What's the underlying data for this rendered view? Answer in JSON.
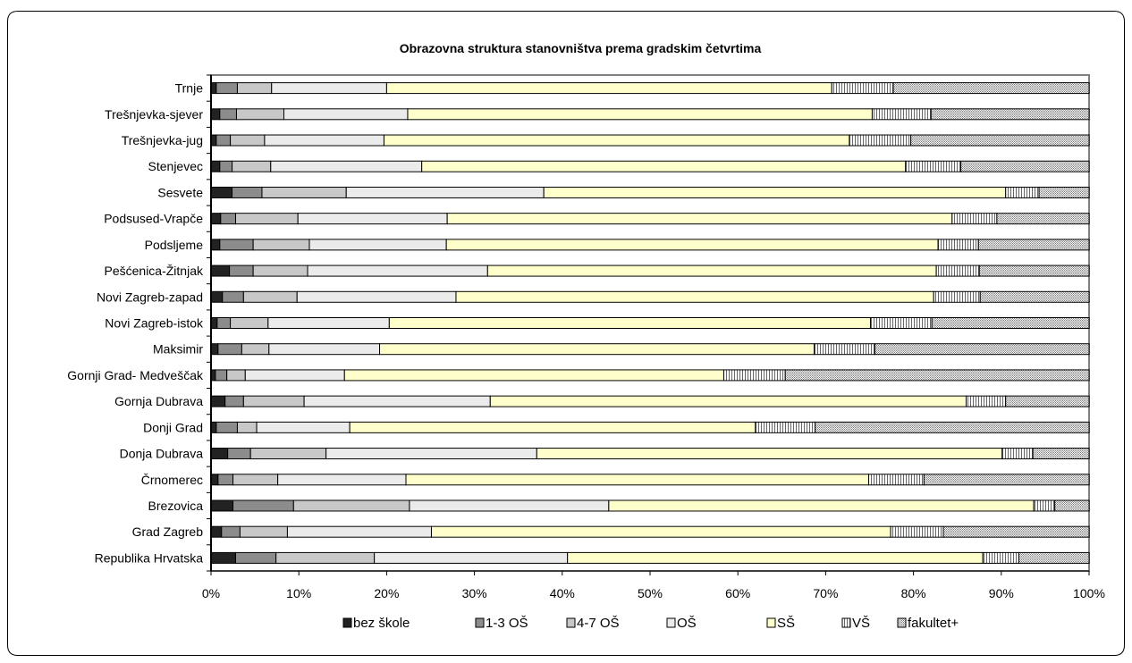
{
  "chart_data": {
    "type": "bar",
    "orientation": "horizontal",
    "stacked": "percent",
    "title": "Obrazovna struktura stanovništva prema gradskim četvrtima",
    "xlabel": "",
    "ylabel": "",
    "xlim": [
      0,
      100
    ],
    "x_ticks": [
      "0%",
      "10%",
      "20%",
      "30%",
      "40%",
      "50%",
      "60%",
      "70%",
      "80%",
      "90%",
      "100%"
    ],
    "legend_position": "bottom",
    "categories": [
      "Trnje",
      "Trešnjevka-sjever",
      "Trešnjevka-jug",
      "Stenjevec",
      "Sesvete",
      "Podsused-Vrapče",
      "Podsljeme",
      "Pešćenica-Žitnjak",
      "Novi Zagreb-zapad",
      "Novi Zagreb-istok",
      "Maksimir",
      "Gornji Grad- Medveščak",
      "Gornja Dubrava",
      "Donji Grad",
      "Donja Dubrava",
      "Črnomerec",
      "Brezovica",
      "Grad Zagreb",
      "Republika Hrvatska"
    ],
    "series": [
      {
        "name": "bez škole",
        "color": "#222222",
        "values": [
          0.6,
          1.0,
          0.6,
          1.0,
          2.4,
          1.1,
          1.0,
          2.1,
          1.3,
          0.7,
          0.8,
          0.5,
          1.6,
          0.6,
          1.9,
          0.8,
          2.5,
          1.2,
          2.8
        ]
      },
      {
        "name": "1-3 OŠ",
        "color": "#8c8c8c",
        "values": [
          2.4,
          1.9,
          1.6,
          1.4,
          3.4,
          1.7,
          3.8,
          2.7,
          2.4,
          1.5,
          2.7,
          1.3,
          2.1,
          2.4,
          2.6,
          1.7,
          6.9,
          2.1,
          4.6
        ]
      },
      {
        "name": "4-7 OŠ",
        "color": "#c8c8c8",
        "values": [
          3.9,
          5.4,
          3.9,
          4.4,
          9.6,
          7.1,
          6.4,
          6.2,
          6.1,
          4.3,
          3.1,
          2.1,
          6.9,
          2.2,
          8.6,
          5.1,
          13.2,
          5.4,
          11.2
        ]
      },
      {
        "name": "OŠ",
        "color": "#ebebeb",
        "values": [
          13.1,
          14.1,
          13.6,
          17.2,
          22.5,
          17.0,
          15.6,
          20.5,
          18.1,
          13.8,
          12.6,
          11.3,
          21.2,
          10.6,
          24.0,
          14.6,
          22.7,
          16.4,
          22.0
        ]
      },
      {
        "name": "SŠ",
        "color": "#ffffcc",
        "values": [
          50.7,
          52.9,
          53.0,
          55.1,
          52.6,
          57.5,
          56.0,
          51.1,
          54.4,
          54.8,
          49.5,
          43.2,
          54.2,
          46.2,
          53.0,
          52.7,
          48.4,
          52.3,
          47.3
        ]
      },
      {
        "name": "VŠ",
        "color": "#a8a8a8",
        "values": [
          7.0,
          6.7,
          7.0,
          6.3,
          3.8,
          5.1,
          4.6,
          4.9,
          5.3,
          7.0,
          6.9,
          7.0,
          4.5,
          6.8,
          3.5,
          6.3,
          2.4,
          6.0,
          4.1
        ]
      },
      {
        "name": "fakultet+",
        "color": "#d6d6d6",
        "values": [
          22.3,
          18.0,
          20.3,
          14.6,
          5.7,
          10.5,
          12.6,
          12.5,
          12.4,
          17.9,
          24.4,
          34.6,
          9.5,
          31.2,
          6.4,
          18.8,
          3.9,
          16.6,
          8.0
        ]
      }
    ]
  }
}
